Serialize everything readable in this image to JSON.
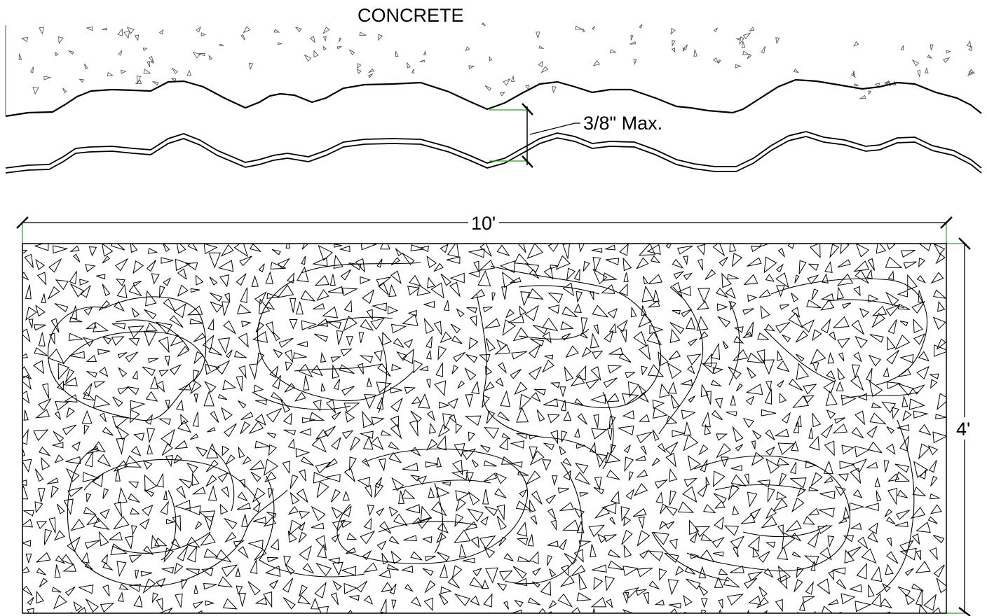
{
  "labels": {
    "material": "CONCRETE",
    "max_depth": "3/8\" Max.",
    "length": "10'",
    "width": "4'"
  },
  "colors": {
    "line": "#000000",
    "extension_line": "#2e9e2e",
    "background": "#ffffff"
  }
}
